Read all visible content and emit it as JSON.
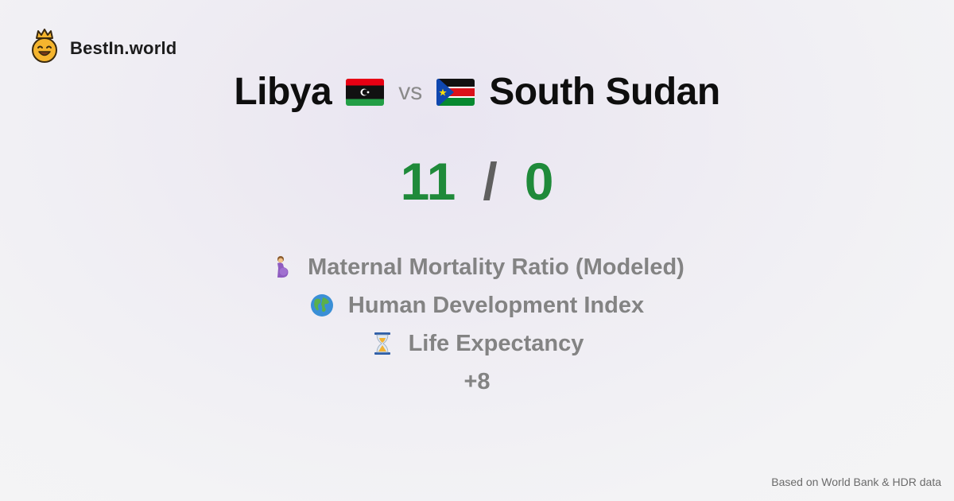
{
  "brand": {
    "name": "BestIn.world",
    "icon": "crowned-smiley-icon"
  },
  "comparison": {
    "country_a": "Libya",
    "country_b": "South Sudan",
    "vs_label": "vs",
    "score_a": "11",
    "score_b": "0",
    "separator": "/"
  },
  "metrics": [
    {
      "icon": "pregnant-woman-icon",
      "label": "Maternal Mortality Ratio (Modeled)"
    },
    {
      "icon": "globe-icon",
      "label": "Human Development Index"
    },
    {
      "icon": "hourglass-icon",
      "label": "Life Expectancy"
    }
  ],
  "more_label": "+8",
  "footer": {
    "source": "Based on World Bank & HDR data"
  },
  "colors": {
    "score": "#1f8a3a",
    "muted": "#838383",
    "brand_face": "#f5b52e"
  }
}
